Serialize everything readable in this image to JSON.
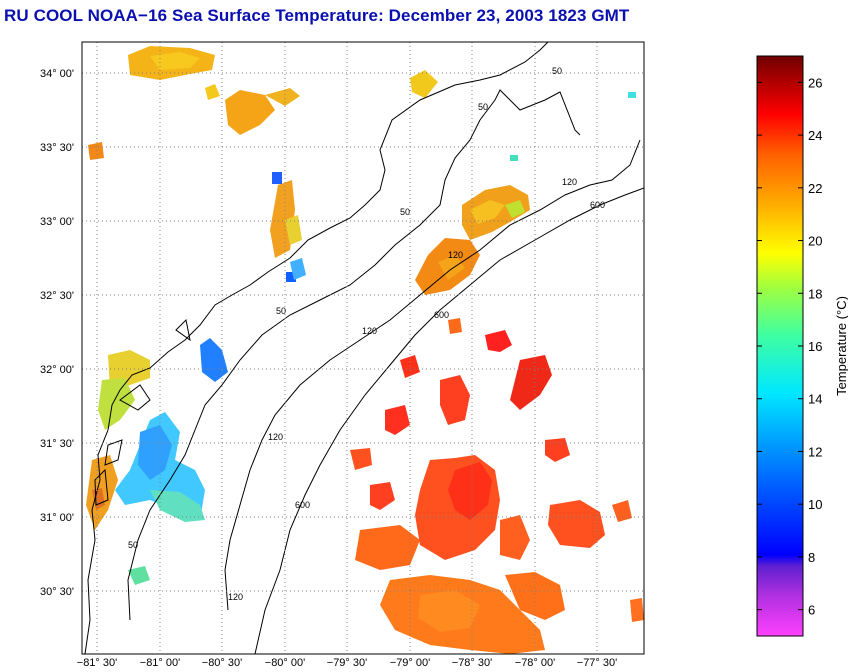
{
  "title": "RU COOL  NOAA−16  Sea Surface Temperature:  December 23, 2003 1823 GMT",
  "map": {
    "lat_labels": [
      "34° 00'",
      "33° 30'",
      "33° 00'",
      "32° 30'",
      "32° 00'",
      "31° 30'",
      "31° 00'",
      "30° 30'"
    ],
    "lon_labels": [
      "−81° 30'",
      "−81° 00'",
      "−80° 30'",
      "−80° 00'",
      "−79° 30'",
      "−79° 00'",
      "−78° 30'",
      "−78° 00'",
      "−77° 30'"
    ],
    "contour_labels": [
      "50",
      "50",
      "50",
      "50",
      "120",
      "120",
      "120",
      "120",
      "600",
      "600",
      "600",
      "50",
      "120"
    ]
  },
  "colorbar": {
    "label": "Temperature (°C)",
    "ticks": [
      "26",
      "24",
      "22",
      "20",
      "18",
      "16",
      "14",
      "12",
      "10",
      "8",
      "6"
    ],
    "min_value": 5,
    "max_value": 27
  },
  "colors": {
    "title": "#0a10b0",
    "grid": "#808080",
    "land": "#ffffff"
  }
}
